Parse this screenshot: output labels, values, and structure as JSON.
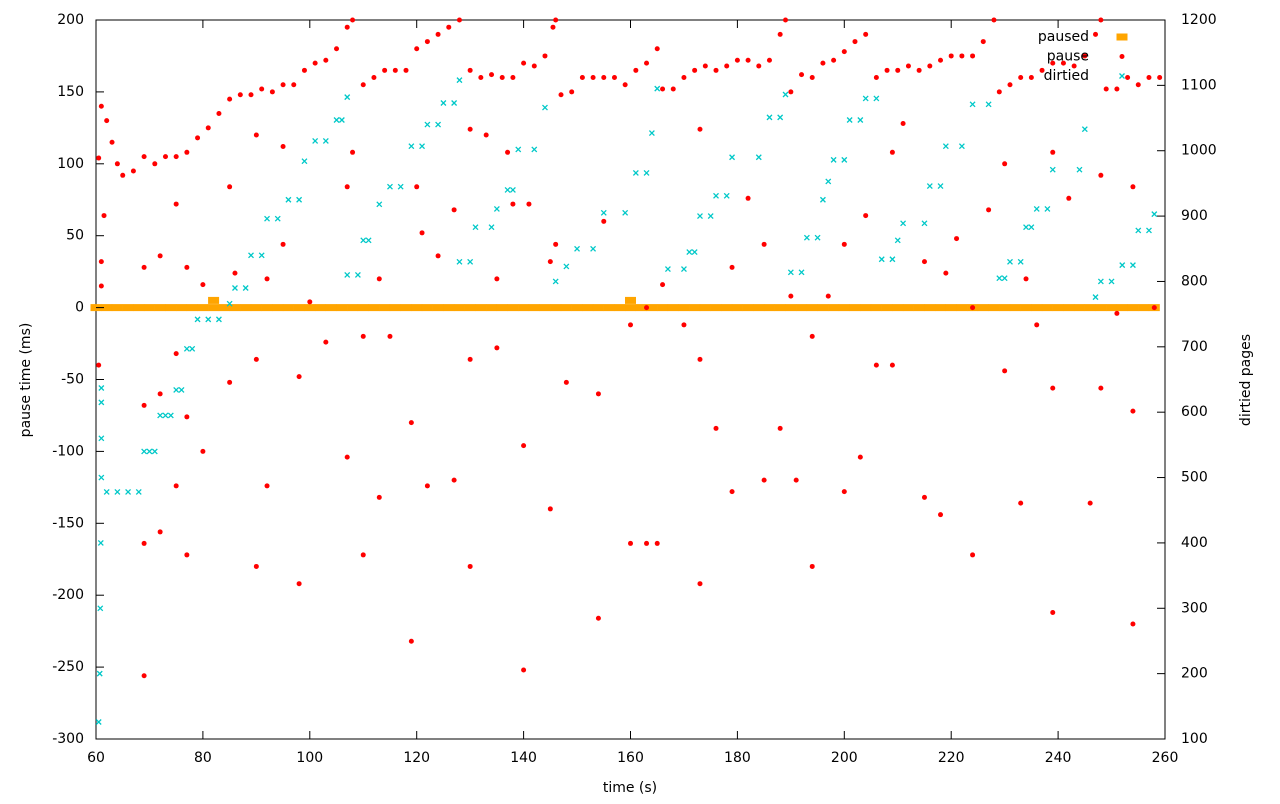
{
  "chart_data": {
    "type": "scatter",
    "xlabel": "time (s)",
    "ylabel": "pause time (ms)",
    "y2label": "dirtied pages",
    "xlim": [
      60,
      260
    ],
    "ylim": [
      -300,
      200
    ],
    "y2lim": [
      100,
      1200
    ],
    "xticks": [
      60,
      80,
      100,
      120,
      140,
      160,
      180,
      200,
      220,
      240,
      260
    ],
    "yticks": [
      -300,
      -250,
      -200,
      -150,
      -100,
      -50,
      0,
      50,
      100,
      150,
      200
    ],
    "y2ticks": [
      100,
      200,
      300,
      400,
      500,
      600,
      700,
      800,
      900,
      1000,
      1100,
      1200
    ],
    "legend": "top-right",
    "series": [
      {
        "name": "paused",
        "color": "#ffa500",
        "marker": "square",
        "x": [
          60,
          62,
          64,
          66,
          68,
          70,
          72,
          74,
          76,
          78,
          80,
          82,
          84,
          86,
          88,
          90,
          92,
          94,
          96,
          98,
          100,
          102,
          104,
          106,
          108,
          110,
          112,
          114,
          116,
          118,
          120,
          122,
          124,
          126,
          128,
          130,
          132,
          134,
          136,
          138,
          140,
          142,
          144,
          146,
          148,
          150,
          152,
          154,
          156,
          158,
          160,
          162,
          164,
          166,
          168,
          170,
          172,
          174,
          176,
          178,
          180,
          182,
          184,
          186,
          188,
          190,
          192,
          194,
          196,
          198,
          200,
          202,
          204,
          206,
          208,
          210,
          212,
          214,
          216,
          218,
          220,
          222,
          224,
          226,
          228,
          230,
          232,
          234,
          236,
          238,
          240,
          242,
          244,
          246,
          248,
          250,
          252,
          254,
          256,
          258,
          82,
          160
        ],
        "values": [
          0,
          0,
          0,
          0,
          0,
          0,
          0,
          0,
          0,
          0,
          0,
          0,
          0,
          0,
          0,
          0,
          0,
          0,
          0,
          0,
          0,
          0,
          0,
          0,
          0,
          0,
          0,
          0,
          0,
          0,
          0,
          0,
          0,
          0,
          0,
          0,
          0,
          0,
          0,
          0,
          0,
          0,
          0,
          0,
          0,
          0,
          0,
          0,
          0,
          0,
          0,
          0,
          0,
          0,
          0,
          0,
          0,
          0,
          0,
          0,
          0,
          0,
          0,
          0,
          0,
          0,
          0,
          0,
          0,
          0,
          0,
          0,
          0,
          0,
          0,
          0,
          0,
          0,
          0,
          0,
          0,
          0,
          0,
          0,
          0,
          0,
          0,
          0,
          0,
          0,
          0,
          0,
          0,
          0,
          0,
          0,
          0,
          0,
          0,
          0,
          5,
          5
        ]
      },
      {
        "name": "pause",
        "color": "#ff0000",
        "marker": "circle",
        "x": [
          60.5,
          61,
          62,
          63,
          64,
          65,
          67,
          69,
          71,
          73,
          75,
          77,
          79,
          81,
          83,
          85,
          87,
          89,
          91,
          93,
          95,
          97,
          99,
          101,
          103,
          105,
          107,
          108,
          110,
          112,
          114,
          116,
          118,
          120,
          122,
          124,
          126,
          128,
          130,
          132,
          134,
          136,
          138,
          140,
          142,
          144,
          145.5,
          146,
          147,
          149,
          151,
          153,
          155,
          157,
          159,
          161,
          163,
          165,
          166,
          168,
          170,
          172,
          174,
          176,
          178,
          180,
          182,
          184,
          186,
          188,
          189,
          190,
          192,
          194,
          196,
          198,
          200,
          202,
          204,
          206,
          208,
          210,
          212,
          214,
          216,
          218,
          220,
          222,
          224,
          226,
          228,
          229,
          231,
          233,
          235,
          237,
          239,
          241,
          243,
          245,
          247,
          248,
          249,
          251,
          253,
          255,
          257,
          259,
          60.5,
          61,
          61,
          61.5,
          69,
          69,
          69,
          69,
          72,
          72,
          72,
          75,
          75,
          75,
          77,
          77,
          77,
          80,
          80,
          85,
          85,
          86,
          90,
          90,
          90,
          92,
          92,
          95,
          95,
          98,
          98,
          100,
          103,
          107,
          107,
          108,
          110,
          110,
          113,
          113,
          115,
          119,
          119,
          120,
          121,
          122,
          124,
          127,
          127,
          130,
          130,
          130,
          133,
          135,
          135,
          137,
          138,
          140,
          140,
          141,
          145,
          145,
          146,
          148,
          154,
          154,
          155,
          160,
          160,
          163,
          163,
          165,
          166,
          170,
          173,
          173,
          173,
          176,
          179,
          179,
          182,
          185,
          185,
          188,
          190,
          191,
          194,
          194,
          197,
          200,
          200,
          203,
          204,
          206,
          209,
          209,
          211,
          215,
          215,
          218,
          219,
          221,
          224,
          224,
          227,
          230,
          230,
          233,
          234,
          236,
          239,
          239,
          239,
          242,
          246,
          248,
          248,
          251,
          254,
          254,
          254,
          258
        ],
        "values": [
          104,
          140,
          130,
          115,
          100,
          92,
          95,
          105,
          100,
          105,
          105,
          108,
          118,
          125,
          135,
          145,
          148,
          148,
          152,
          150,
          155,
          155,
          165,
          170,
          172,
          180,
          195,
          200,
          155,
          160,
          165,
          165,
          165,
          180,
          185,
          190,
          195,
          200,
          165,
          160,
          162,
          160,
          160,
          170,
          168,
          175,
          195,
          200,
          148,
          150,
          160,
          160,
          160,
          160,
          155,
          165,
          170,
          180,
          152,
          152,
          160,
          165,
          168,
          165,
          168,
          172,
          172,
          168,
          172,
          190,
          200,
          150,
          162,
          160,
          170,
          172,
          178,
          185,
          190,
          160,
          165,
          165,
          168,
          165,
          168,
          172,
          175,
          175,
          175,
          185,
          200,
          150,
          155,
          160,
          160,
          165,
          170,
          170,
          168,
          175,
          190,
          200,
          152,
          152,
          160,
          155,
          160,
          160,
          -40,
          15,
          32,
          64,
          -68,
          -164,
          -256,
          28,
          36,
          -60,
          -156,
          72,
          -32,
          -124,
          28,
          -76,
          -172,
          16,
          -100,
          84,
          -52,
          24,
          120,
          -36,
          -180,
          20,
          -124,
          112,
          44,
          -48,
          -192,
          4,
          -24,
          84,
          -104,
          108,
          -20,
          -172,
          -132,
          20,
          -20,
          -80,
          -232,
          84,
          52,
          -124,
          36,
          68,
          -120,
          124,
          -36,
          -180,
          120,
          -28,
          20,
          108,
          72,
          -96,
          -252,
          72,
          32,
          -140,
          44,
          -52,
          -60,
          -216,
          60,
          -12,
          -164,
          0,
          -164,
          -164,
          16,
          -12,
          124,
          -36,
          -192,
          -84,
          28,
          -128,
          76,
          44,
          -120,
          -84,
          8,
          -120,
          -20,
          -180,
          8,
          44,
          -128,
          -104,
          64,
          -40,
          108,
          -40,
          128,
          -132,
          32,
          -144,
          24,
          48,
          -172,
          0,
          68,
          100,
          -44,
          -136,
          20,
          -12,
          -56,
          -212,
          108,
          76,
          -136,
          92,
          -56,
          -4,
          84,
          -72,
          -220,
          0
        ]
      },
      {
        "name": "dirtied",
        "color": "#00c8c8",
        "marker": "cross",
        "axis": "y2",
        "x": [
          60.5,
          60.7,
          60.8,
          60.9,
          61,
          61,
          61,
          61,
          62,
          64,
          66,
          68,
          69,
          70,
          71,
          72,
          73,
          74,
          75,
          76,
          77,
          78,
          79,
          81,
          83,
          85,
          86,
          88,
          89,
          91,
          92,
          94,
          96,
          98,
          99,
          101,
          103,
          105,
          106,
          107,
          107,
          109,
          110,
          111,
          113,
          115,
          117,
          119,
          121,
          122,
          124,
          125,
          127,
          128,
          128,
          130,
          131,
          134,
          135,
          137,
          138,
          139,
          142,
          144,
          146,
          148,
          150,
          153,
          155,
          159,
          161,
          163,
          164,
          165,
          167,
          170,
          171,
          172,
          173,
          175,
          176,
          178,
          179,
          184,
          186,
          188,
          189,
          190,
          192,
          193,
          195,
          196,
          197,
          198,
          200,
          201,
          203,
          204,
          206,
          207,
          209,
          210,
          211,
          215,
          216,
          218,
          219,
          222,
          224,
          227,
          229,
          230,
          231,
          233,
          234,
          235,
          236,
          238,
          239,
          244,
          245,
          247,
          248,
          250,
          252,
          254,
          255,
          257,
          258
        ],
        "values": [
          126,
          200,
          300,
          400,
          500,
          560,
          615,
          637,
          478,
          478,
          478,
          478,
          540,
          540,
          540,
          595,
          595,
          595,
          634,
          634,
          697,
          697,
          742,
          742,
          742,
          766,
          790,
          790,
          840,
          840,
          896,
          896,
          925,
          925,
          984,
          1015,
          1015,
          1047,
          1047,
          1082,
          810,
          810,
          863,
          863,
          918,
          945,
          945,
          1007,
          1007,
          1040,
          1040,
          1073,
          1073,
          1108,
          830,
          830,
          883,
          883,
          911,
          940,
          940,
          1002,
          1002,
          1066,
          800,
          823,
          850,
          850,
          905,
          905,
          966,
          966,
          1027,
          1095,
          819,
          819,
          845,
          845,
          900,
          900,
          931,
          931,
          990,
          990,
          1051,
          1051,
          1086,
          814,
          814,
          867,
          867,
          925,
          953,
          986,
          986,
          1047,
          1047,
          1080,
          1080,
          834,
          834,
          863,
          889,
          889,
          946,
          946,
          1007,
          1007,
          1071,
          1071,
          805,
          805,
          830,
          830,
          883,
          883,
          911,
          911,
          971,
          971,
          1033,
          776,
          800,
          800,
          825,
          825,
          878,
          878,
          903
        ]
      }
    ]
  }
}
